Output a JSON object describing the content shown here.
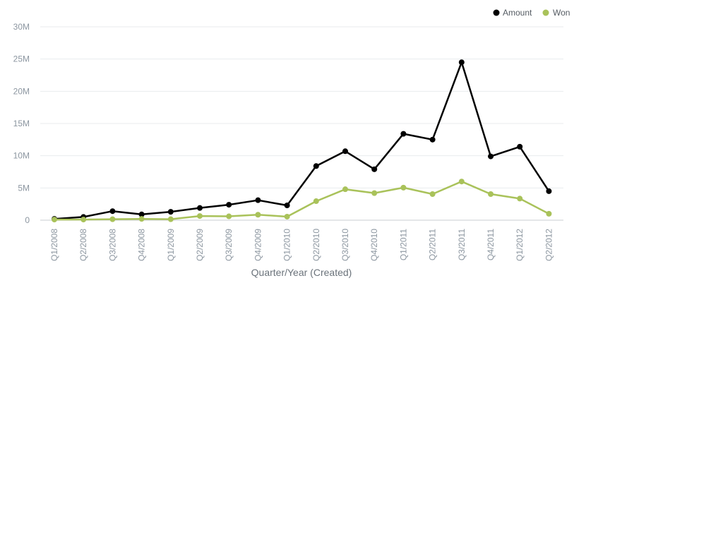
{
  "chart_data": {
    "type": "line",
    "title": "",
    "xlabel": "Quarter/Year (Created)",
    "ylabel": "",
    "ylim": [
      0,
      30000000
    ],
    "yticks": [
      0,
      5000000,
      10000000,
      15000000,
      20000000,
      25000000,
      30000000
    ],
    "ytick_labels": [
      "0",
      "5M",
      "10M",
      "15M",
      "20M",
      "25M",
      "30M"
    ],
    "grid": true,
    "legend_position": "top-right",
    "categories": [
      "Q1/2008",
      "Q2/2008",
      "Q3/2008",
      "Q4/2008",
      "Q1/2009",
      "Q2/2009",
      "Q3/2009",
      "Q4/2009",
      "Q1/2010",
      "Q2/2010",
      "Q3/2010",
      "Q4/2010",
      "Q1/2011",
      "Q2/2011",
      "Q3/2011",
      "Q4/2011",
      "Q1/2012",
      "Q2/2012"
    ],
    "series": [
      {
        "name": "Amount",
        "color": "#000000",
        "values": [
          200000,
          500000,
          1400000,
          900000,
          1300000,
          1900000,
          2400000,
          3100000,
          2300000,
          8400000,
          10700000,
          7900000,
          13400000,
          12500000,
          24500000,
          9900000,
          11400000,
          4500000
        ]
      },
      {
        "name": "Won",
        "color": "#a9c25a",
        "values": [
          100000,
          100000,
          150000,
          200000,
          150000,
          650000,
          600000,
          850000,
          550000,
          2950000,
          4800000,
          4200000,
          5050000,
          4050000,
          6000000,
          4050000,
          3350000,
          1000000
        ]
      }
    ]
  }
}
